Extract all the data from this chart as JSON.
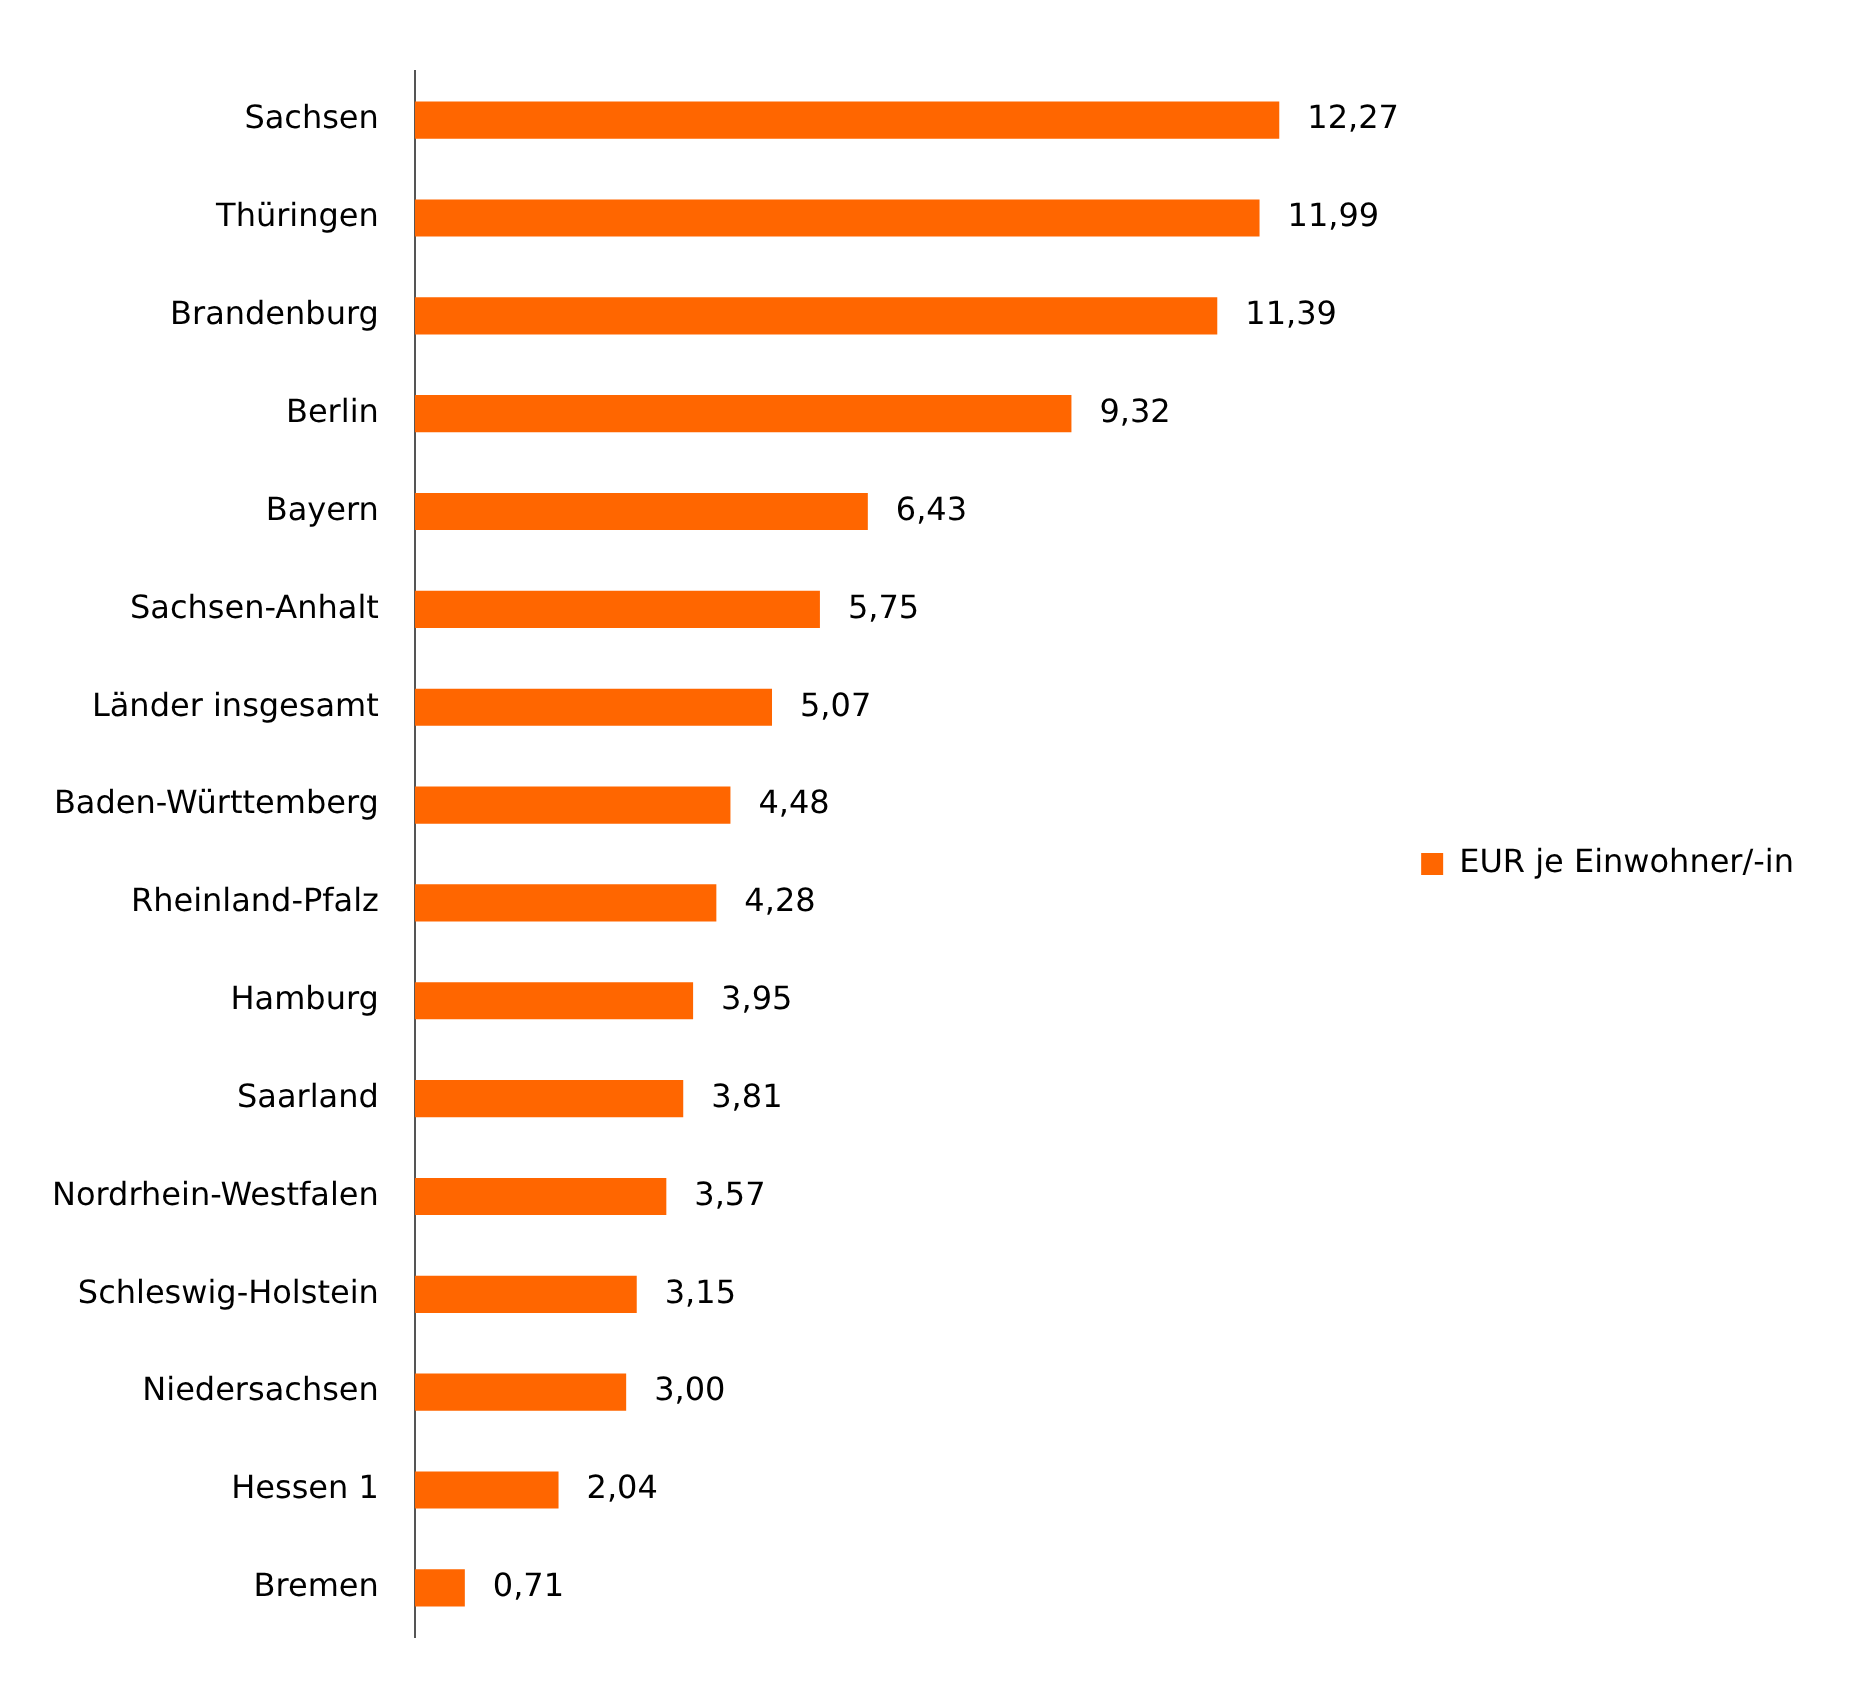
{
  "chart_data": {
    "type": "bar",
    "orientation": "horizontal",
    "categories": [
      "Sachsen",
      "Thüringen",
      "Brandenburg",
      "Berlin",
      "Bayern",
      "Sachsen-Anhalt",
      "Länder insgesamt",
      "Baden-Württemberg",
      "Rheinland-Pfalz",
      "Hamburg",
      "Saarland",
      "Nordrhein-Westfalen",
      "Schleswig-Holstein",
      "Niedersachsen",
      "Hessen 1",
      "Bremen"
    ],
    "series": [
      {
        "name": "EUR je Einwohner/-in",
        "color": "#ff6600",
        "values": [
          12.27,
          11.99,
          11.39,
          9.32,
          6.43,
          5.75,
          5.07,
          4.48,
          4.28,
          3.95,
          3.81,
          3.57,
          3.15,
          3.0,
          2.04,
          0.71
        ],
        "value_labels": [
          "12,27",
          "11,99",
          "11,39",
          "9,32",
          "6,43",
          "5,75",
          "5,07",
          "4,48",
          "4,28",
          "3,95",
          "3,81",
          "3,57",
          "3,15",
          "3,00",
          "2,04",
          "0,71"
        ]
      }
    ],
    "legend": "right",
    "tick_labels": "y"
  }
}
